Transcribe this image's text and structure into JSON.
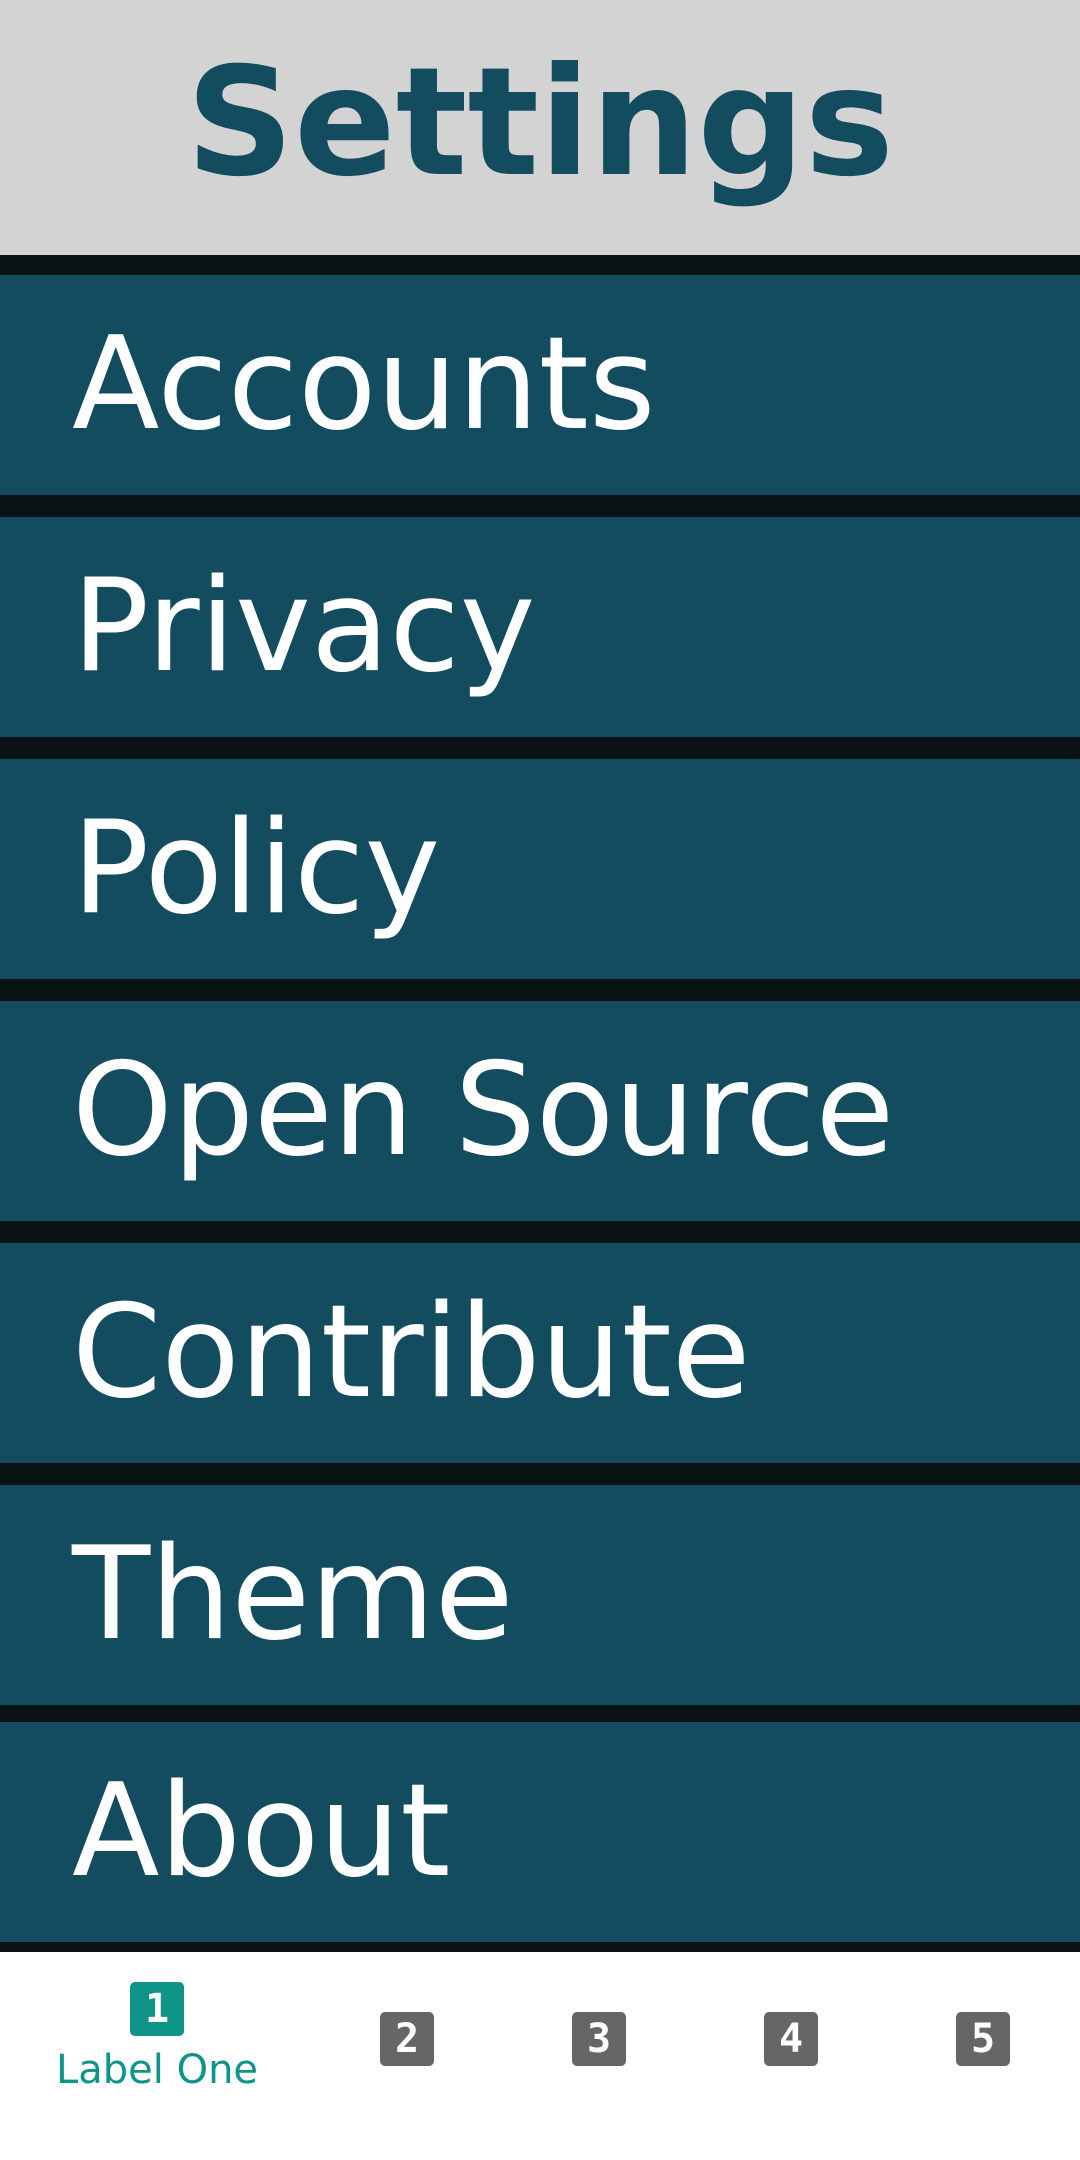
{
  "header": {
    "title": "Settings"
  },
  "menu": {
    "items": [
      {
        "label": "Accounts"
      },
      {
        "label": "Privacy"
      },
      {
        "label": "Policy"
      },
      {
        "label": "Open Source"
      },
      {
        "label": "Contribute"
      },
      {
        "label": "Theme"
      },
      {
        "label": "About"
      }
    ]
  },
  "bottom_nav": {
    "items": [
      {
        "icon_text": "1",
        "label": "Label One",
        "active": true
      },
      {
        "icon_text": "2"
      },
      {
        "icon_text": "3"
      },
      {
        "icon_text": "4"
      },
      {
        "icon_text": "5"
      }
    ]
  },
  "colors": {
    "header_bg": "#d3d3d3",
    "header_text": "#134b5f",
    "item_bg": "#134b5f",
    "divider": "#0a1216",
    "item_text": "#ffffff",
    "nav_active": "#0f9488",
    "nav_inactive": "#666666"
  }
}
